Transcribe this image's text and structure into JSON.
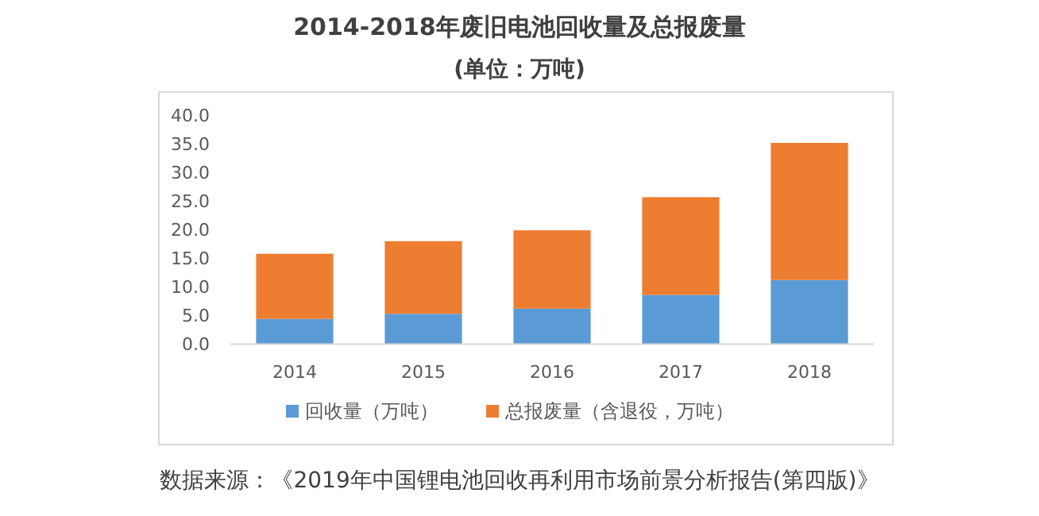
{
  "chart_data": {
    "type": "bar",
    "title": "2014-2018年废旧电池回收量及总报废量",
    "subtitle": "(单位：万吨)",
    "categories": [
      "2014",
      "2015",
      "2016",
      "2017",
      "2018"
    ],
    "series": [
      {
        "name": "回收量（万吨）",
        "color": "#5b9bd5",
        "values": [
          4.4,
          5.3,
          6.2,
          8.6,
          11.2
        ]
      },
      {
        "name": "总报废量（含退役，万吨）",
        "color": "#ed7d31",
        "values": [
          11.4,
          12.7,
          13.7,
          17.1,
          24.0
        ]
      }
    ],
    "stacked": true,
    "ylim": [
      0,
      40
    ],
    "yticks": [
      {
        "value": 0,
        "label": "0.0"
      },
      {
        "value": 5,
        "label": "5.0"
      },
      {
        "value": 10,
        "label": "10.0"
      },
      {
        "value": 15,
        "label": "15.0"
      },
      {
        "value": 20,
        "label": "20.0"
      },
      {
        "value": 25,
        "label": "25.0"
      },
      {
        "value": 30,
        "label": "30.0"
      },
      {
        "value": 35,
        "label": "35.0"
      },
      {
        "value": 40,
        "label": "40.0"
      }
    ],
    "legend": "bottom",
    "annotations": [
      "数据来源：《2019年中国锂电池回收再利用市场前景分析报告(第四版)》"
    ]
  }
}
